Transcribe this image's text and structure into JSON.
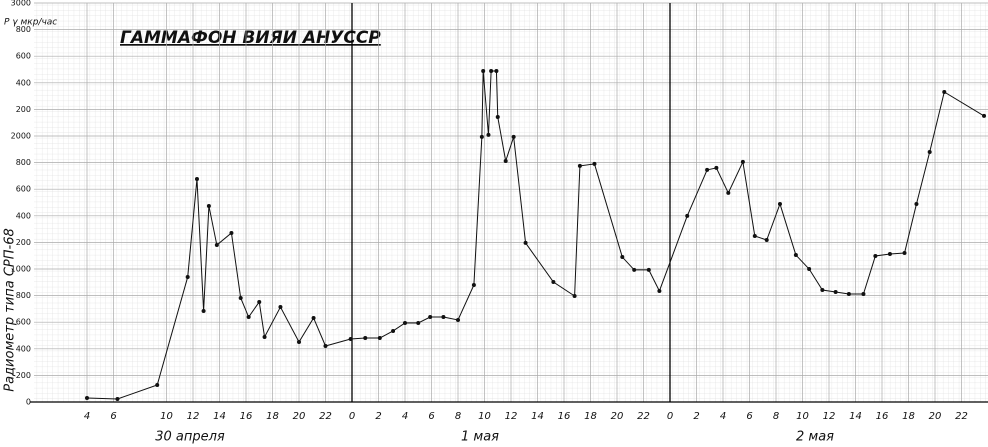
{
  "chart_data": {
    "type": "line",
    "title": "ГАММАФОН ВИЯИ АНУССР",
    "y_unit": "Р γ мкр/час",
    "y_label": "Радиометр типа СРП-68",
    "day_labels": [
      "30 апреля",
      "1 мая",
      "2 мая"
    ],
    "color": "#111111",
    "grid": true,
    "xlim": [
      0,
      72
    ],
    "ylim": [
      0,
      3000
    ],
    "xticks": [
      4,
      6,
      10,
      12,
      14,
      16,
      18,
      20,
      22,
      {
        "value": 24,
        "label": "0"
      },
      {
        "value": 26,
        "label": "2"
      },
      {
        "value": 28,
        "label": "4"
      },
      {
        "value": 30,
        "label": "6"
      },
      {
        "value": 32,
        "label": "8"
      },
      {
        "value": 34,
        "label": "10"
      },
      {
        "value": 36,
        "label": "12"
      },
      {
        "value": 38,
        "label": "14"
      },
      {
        "value": 40,
        "label": "16"
      },
      {
        "value": 42,
        "label": "18"
      },
      {
        "value": 44,
        "label": "20"
      },
      {
        "value": 46,
        "label": "22"
      },
      {
        "value": 48,
        "label": "0"
      },
      {
        "value": 50,
        "label": "2"
      },
      {
        "value": 52,
        "label": "4"
      },
      {
        "value": 54,
        "label": "6"
      },
      {
        "value": 56,
        "label": "8"
      },
      {
        "value": 58,
        "label": "10"
      },
      {
        "value": 60,
        "label": "12"
      },
      {
        "value": 62,
        "label": "14"
      },
      {
        "value": 64,
        "label": "16"
      },
      {
        "value": 66,
        "label": "18"
      },
      {
        "value": 68,
        "label": "20"
      },
      {
        "value": 70,
        "label": "22"
      }
    ],
    "yticks": [
      0,
      200,
      400,
      600,
      800,
      1000,
      {
        "value": 1200,
        "label": "200"
      },
      {
        "value": 1400,
        "label": "400"
      },
      {
        "value": 1600,
        "label": "600"
      },
      {
        "value": 1800,
        "label": "800"
      },
      2000,
      {
        "value": 2200,
        "label": "200"
      },
      {
        "value": 2400,
        "label": "400"
      },
      {
        "value": 2600,
        "label": "600"
      },
      {
        "value": 2800,
        "label": "800"
      },
      3000
    ],
    "x": [
      4.0,
      6.3,
      9.3,
      11.6,
      12.3,
      12.8,
      13.2,
      13.8,
      14.9,
      15.6,
      16.2,
      17.0,
      17.4,
      18.6,
      20.0,
      21.1,
      22.0,
      23.9,
      25.0,
      26.1,
      27.1,
      28.0,
      29.0,
      29.9,
      30.9,
      32.0,
      33.2,
      33.8,
      33.9,
      34.3,
      34.5,
      34.9,
      35.0,
      35.6,
      36.2,
      37.1,
      39.2,
      40.8,
      41.2,
      42.3,
      44.4,
      45.3,
      46.4,
      47.2,
      49.3,
      50.8,
      51.5,
      52.4,
      53.5,
      54.4,
      55.3,
      56.3,
      57.5,
      58.5,
      59.5,
      60.5,
      61.5,
      62.6,
      63.5,
      64.6,
      65.7,
      66.6,
      67.6,
      68.7,
      71.7
    ],
    "values": [
      30,
      23,
      128,
      940,
      1677,
      684,
      1474,
      1180,
      1271,
      782,
      639,
      752,
      489,
      714,
      451,
      632,
      421,
      474,
      481,
      481,
      534,
      594,
      594,
      639,
      639,
      617,
      880,
      1993,
      2489,
      2008,
      2489,
      2489,
      2143,
      1812,
      1993,
      1196,
      902,
      797,
      1775,
      1790,
      1090,
      993,
      993,
      835,
      1399,
      1745,
      1760,
      1572,
      1805,
      1248,
      1218,
      1489,
      1105,
      1000,
      842,
      827,
      812,
      812,
      1098,
      1113,
      1120,
      1489,
      1880,
      2331,
      2151
    ]
  }
}
